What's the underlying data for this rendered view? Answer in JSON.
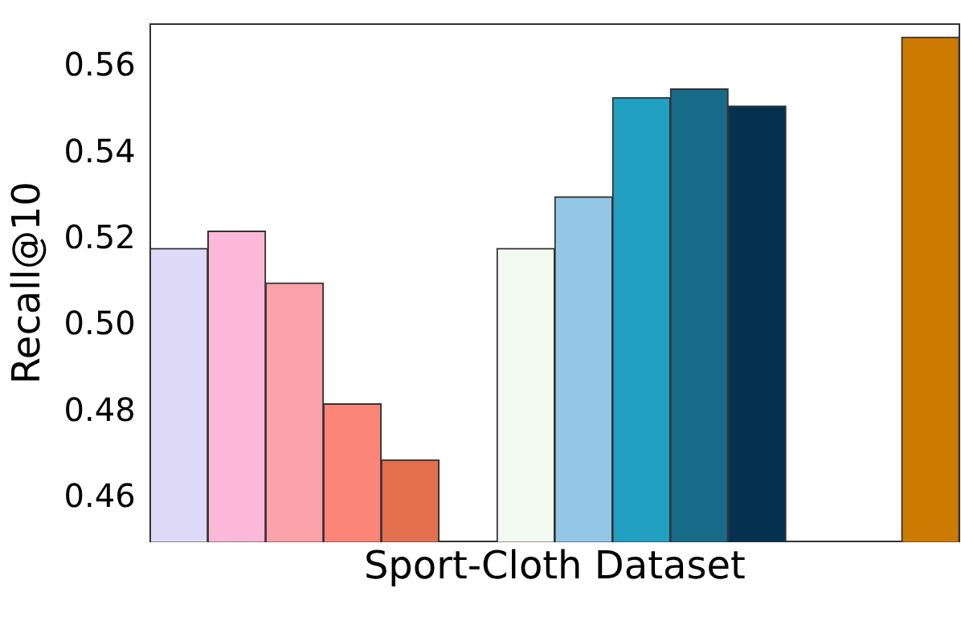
{
  "chart_data": {
    "type": "bar",
    "xlabel": "Sport-Cloth Dataset",
    "ylabel": "Recall@10",
    "categories": [
      null,
      null,
      null,
      null,
      null,
      null,
      null,
      null,
      null,
      null,
      null,
      null,
      null,
      null
    ],
    "values": [
      0.518,
      0.522,
      0.51,
      0.482,
      0.469,
      null,
      0.518,
      0.53,
      0.553,
      0.555,
      0.551,
      null,
      null,
      0.567
    ],
    "colors": [
      "#dedaf8",
      "#fcb8d8",
      "#fba1aa",
      "#fb8577",
      "#e5704f",
      "#ffffff",
      "#f2f9f0",
      "#94c7e6",
      "#22a0c2",
      "#176a88",
      "#053150",
      "#ffffff",
      "#ffffff",
      "#cd7a00"
    ],
    "ylim": [
      0.45,
      0.57
    ],
    "yticks": [
      {
        "value": 0.46,
        "label": "0.46"
      },
      {
        "value": 0.48,
        "label": "0.48"
      },
      {
        "value": 0.5,
        "label": "0.50"
      },
      {
        "value": 0.52,
        "label": "0.52"
      },
      {
        "value": 0.54,
        "label": "0.54"
      },
      {
        "value": 0.56,
        "label": "0.56"
      }
    ],
    "grid": false,
    "legend": false
  }
}
